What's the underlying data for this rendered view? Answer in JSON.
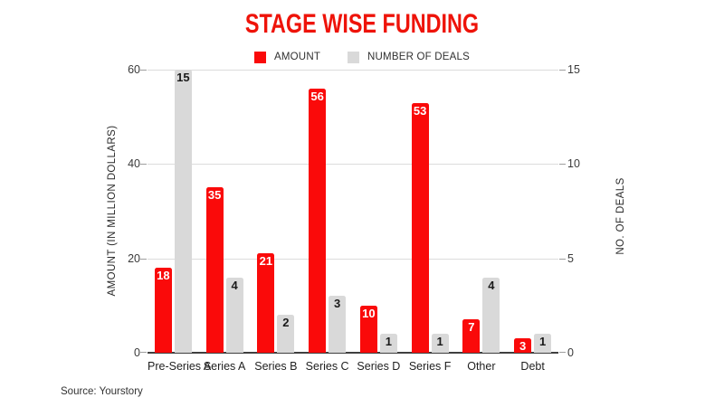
{
  "chart_data": {
    "type": "bar",
    "title": "STAGE WISE FUNDING",
    "title_color": "#ee1309",
    "categories": [
      "Pre-Series A",
      "Series A",
      "Series B",
      "Series C",
      "Series D",
      "Series F",
      "Other",
      "Debt"
    ],
    "series": [
      {
        "name": "AMOUNT",
        "color": "#fa0a0a",
        "label_color": "#ffffff",
        "axis": "left",
        "values": [
          18,
          35,
          21,
          56,
          10,
          53,
          7,
          3
        ]
      },
      {
        "name": "NUMBER OF DEALS",
        "color": "#d9d9d9",
        "label_color": "#1a1a1a",
        "axis": "right",
        "values": [
          15,
          4,
          2,
          3,
          1,
          1,
          4,
          1
        ]
      }
    ],
    "left_axis": {
      "label": "AMOUNT (IN MILLION DOLLARS)",
      "ticks": [
        0,
        20,
        40,
        60
      ],
      "max": 60
    },
    "right_axis": {
      "label": "NO. OF DEALS",
      "ticks": [
        0,
        5,
        10,
        15
      ],
      "max": 15
    },
    "legend_position": "top",
    "grid": true
  },
  "source": "Source: Yourstory"
}
